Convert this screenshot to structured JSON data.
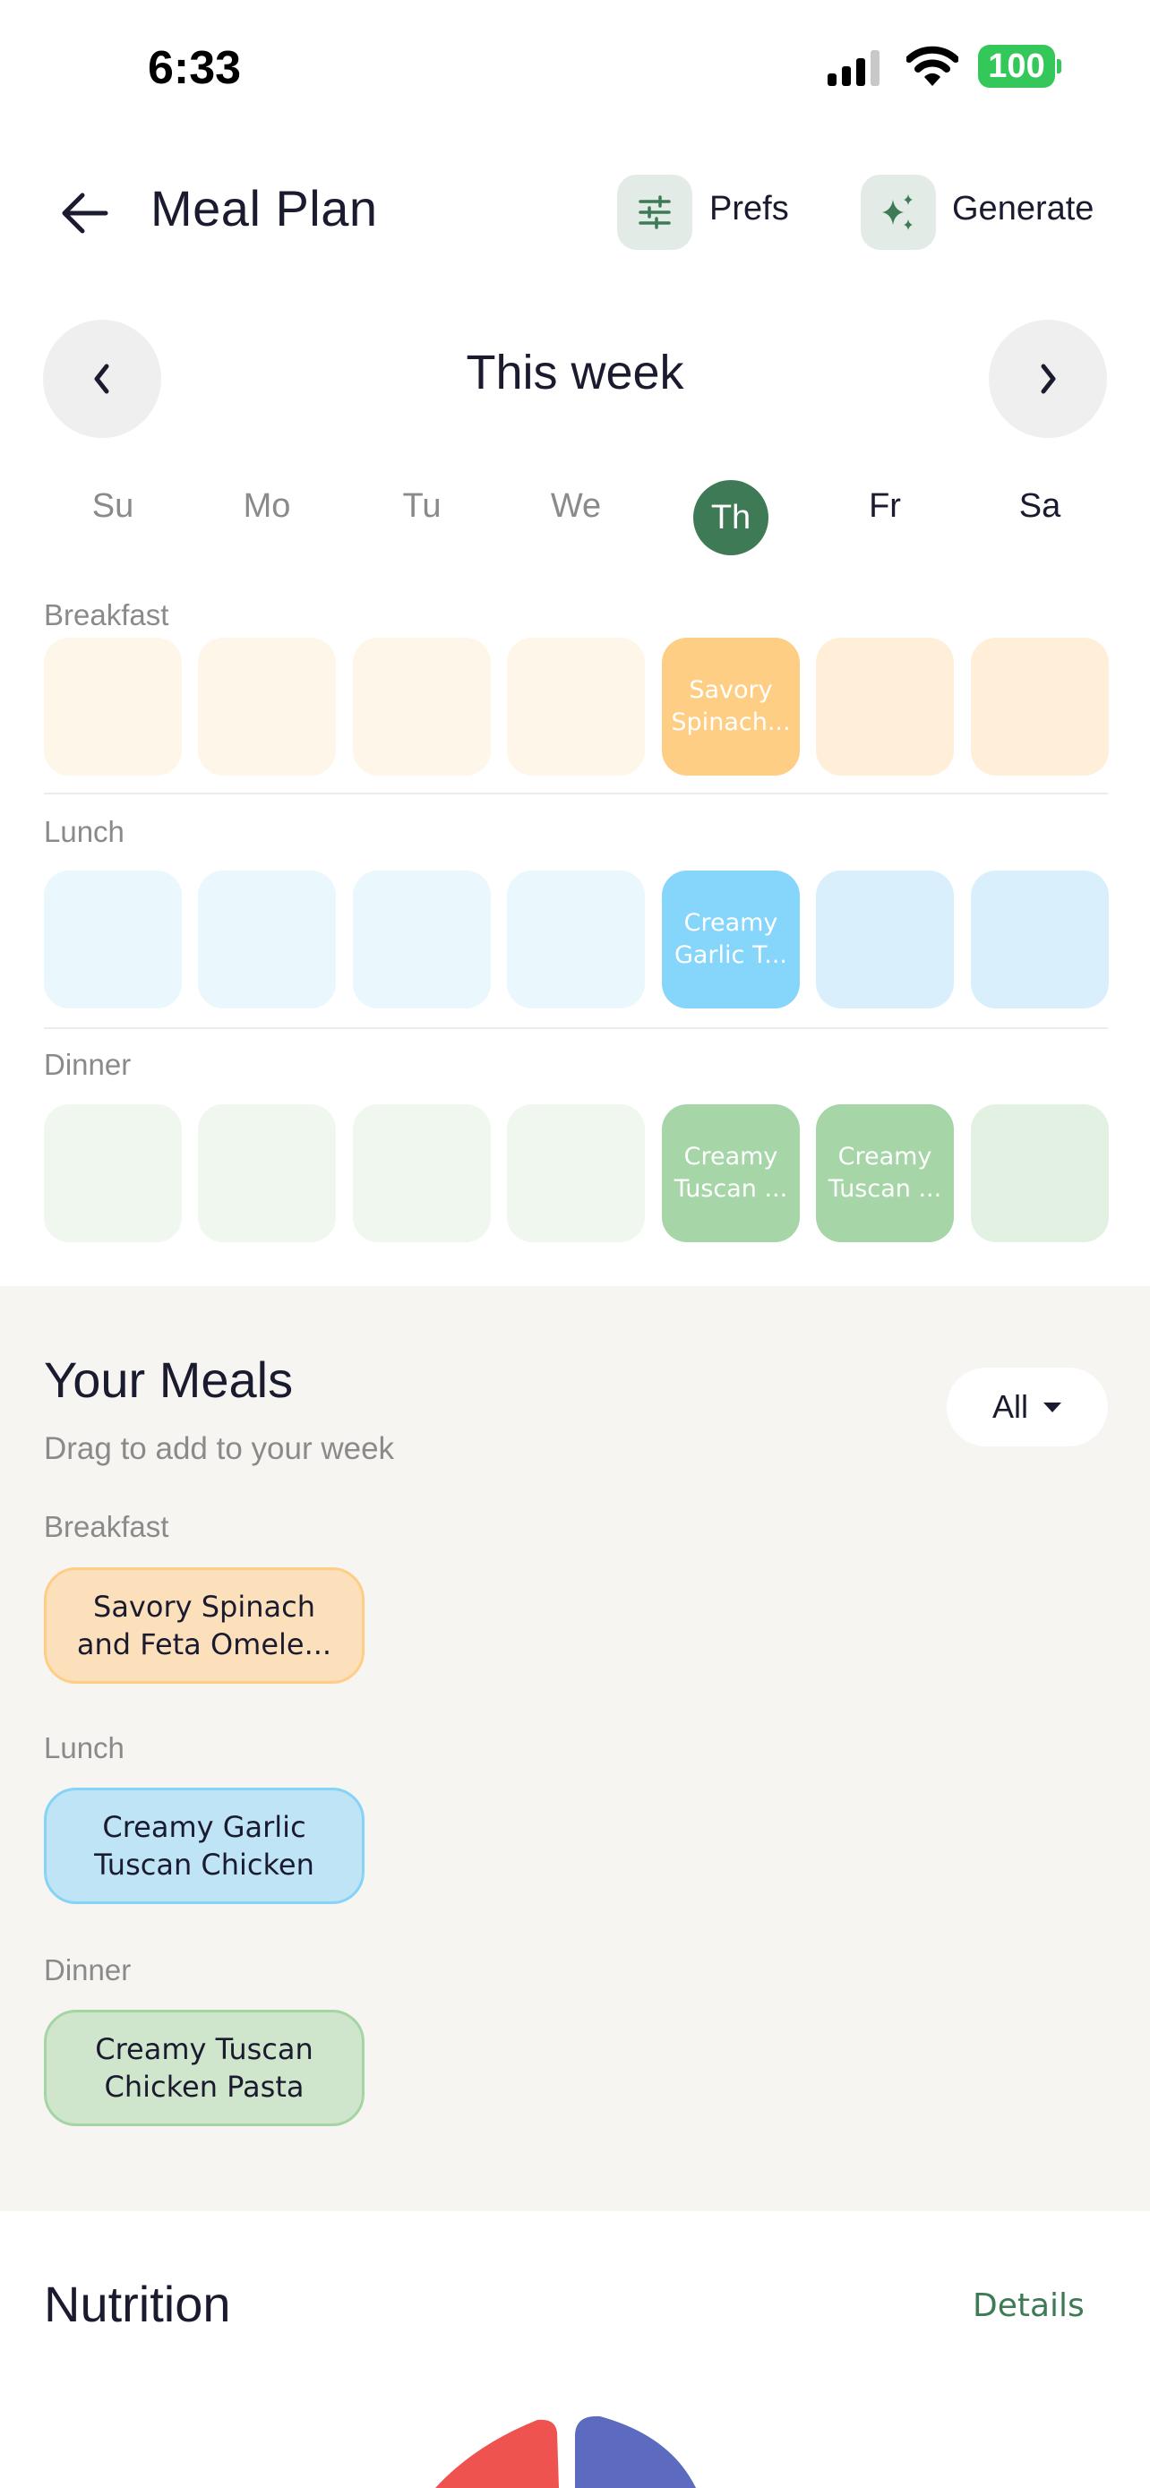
{
  "status_bar": {
    "time": "6:33",
    "battery": "100"
  },
  "header": {
    "title": "Meal Plan",
    "prefs_label": "Prefs",
    "generate_label": "Generate"
  },
  "week_nav": {
    "label": "This week"
  },
  "days": [
    {
      "label": "Su",
      "state": "past"
    },
    {
      "label": "Mo",
      "state": "past"
    },
    {
      "label": "Tu",
      "state": "past"
    },
    {
      "label": "We",
      "state": "past"
    },
    {
      "label": "Th",
      "state": "today"
    },
    {
      "label": "Fr",
      "state": "future"
    },
    {
      "label": "Sa",
      "state": "future"
    }
  ],
  "planner": [
    {
      "label": "Breakfast",
      "colors": {
        "active": "#FFCE85",
        "past": "#FFF6EA",
        "future": "#FFEFD9"
      },
      "cells": [
        "",
        "",
        "",
        "",
        "Savory Spinach...",
        "",
        ""
      ]
    },
    {
      "label": "Lunch",
      "colors": {
        "active": "#85D6FA",
        "past": "#EAF7FD",
        "future": "#D9F0FC"
      },
      "cells": [
        "",
        "",
        "",
        "",
        "Creamy Garlic T...",
        "",
        ""
      ]
    },
    {
      "label": "Dinner",
      "colors": {
        "active": "#A6D6A7",
        "past": "#F0F7EF",
        "future": "#E3F1E3"
      },
      "cells": [
        "",
        "",
        "",
        "",
        "Creamy Tuscan ...",
        "Creamy Tuscan ...",
        ""
      ]
    }
  ],
  "your_meals": {
    "title": "Your Meals",
    "subtitle": "Drag to add to your week",
    "filter": "All",
    "groups": [
      {
        "label": "Breakfast",
        "meal": "Savory Spinach and Feta Omele...",
        "bg": "#FCE0BC",
        "border": "#FFCD85"
      },
      {
        "label": "Lunch",
        "meal": "Creamy Garlic Tuscan Chicken",
        "bg": "#BEE4F5",
        "border": "#85D3F7"
      },
      {
        "label": "Dinner",
        "meal": "Creamy Tuscan Chicken Pasta",
        "bg": "#CFE5CC",
        "border": "#A5D5A4"
      }
    ]
  },
  "nutrition": {
    "title": "Nutrition",
    "details_label": "Details",
    "slice_colors": [
      "#EF5350",
      "#5C6BC0"
    ]
  },
  "colors": {
    "accent": "#3D7A55",
    "section_bg": "#F6F5F2"
  }
}
